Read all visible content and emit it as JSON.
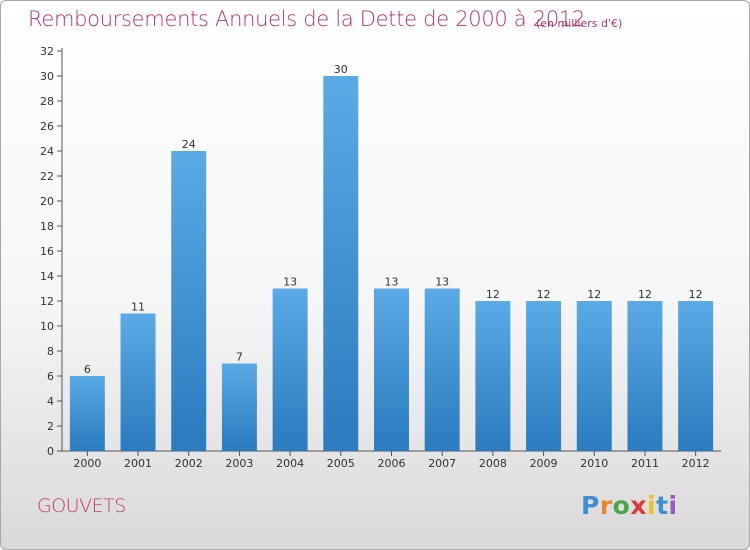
{
  "header": {
    "title": "Remboursements Annuels de la Dette de 2000 à 2012",
    "subtitle": "(en milliers d'€)"
  },
  "footer": {
    "commune": "GOUVETS",
    "logo_letters": [
      "P",
      "r",
      "o",
      "x",
      "i",
      "t",
      "i"
    ]
  },
  "chart_data": {
    "type": "bar",
    "title": "Remboursements Annuels de la Dette de 2000 à 2012",
    "subtitle": "(en milliers d'€)",
    "categories": [
      "2000",
      "2001",
      "2002",
      "2003",
      "2004",
      "2005",
      "2006",
      "2007",
      "2008",
      "2009",
      "2010",
      "2011",
      "2012"
    ],
    "values": [
      6,
      11,
      24,
      7,
      13,
      30,
      13,
      13,
      12,
      12,
      12,
      12,
      12
    ],
    "yticks": [
      0,
      2,
      4,
      6,
      8,
      10,
      12,
      14,
      16,
      18,
      20,
      22,
      24,
      26,
      28,
      30,
      32
    ],
    "ylim": [
      0,
      32
    ],
    "grid": false,
    "legend": "none",
    "colors": {
      "bar_light": "#5aaae6",
      "bar_dark": "#2a7bbf",
      "axis": "#555555"
    }
  }
}
